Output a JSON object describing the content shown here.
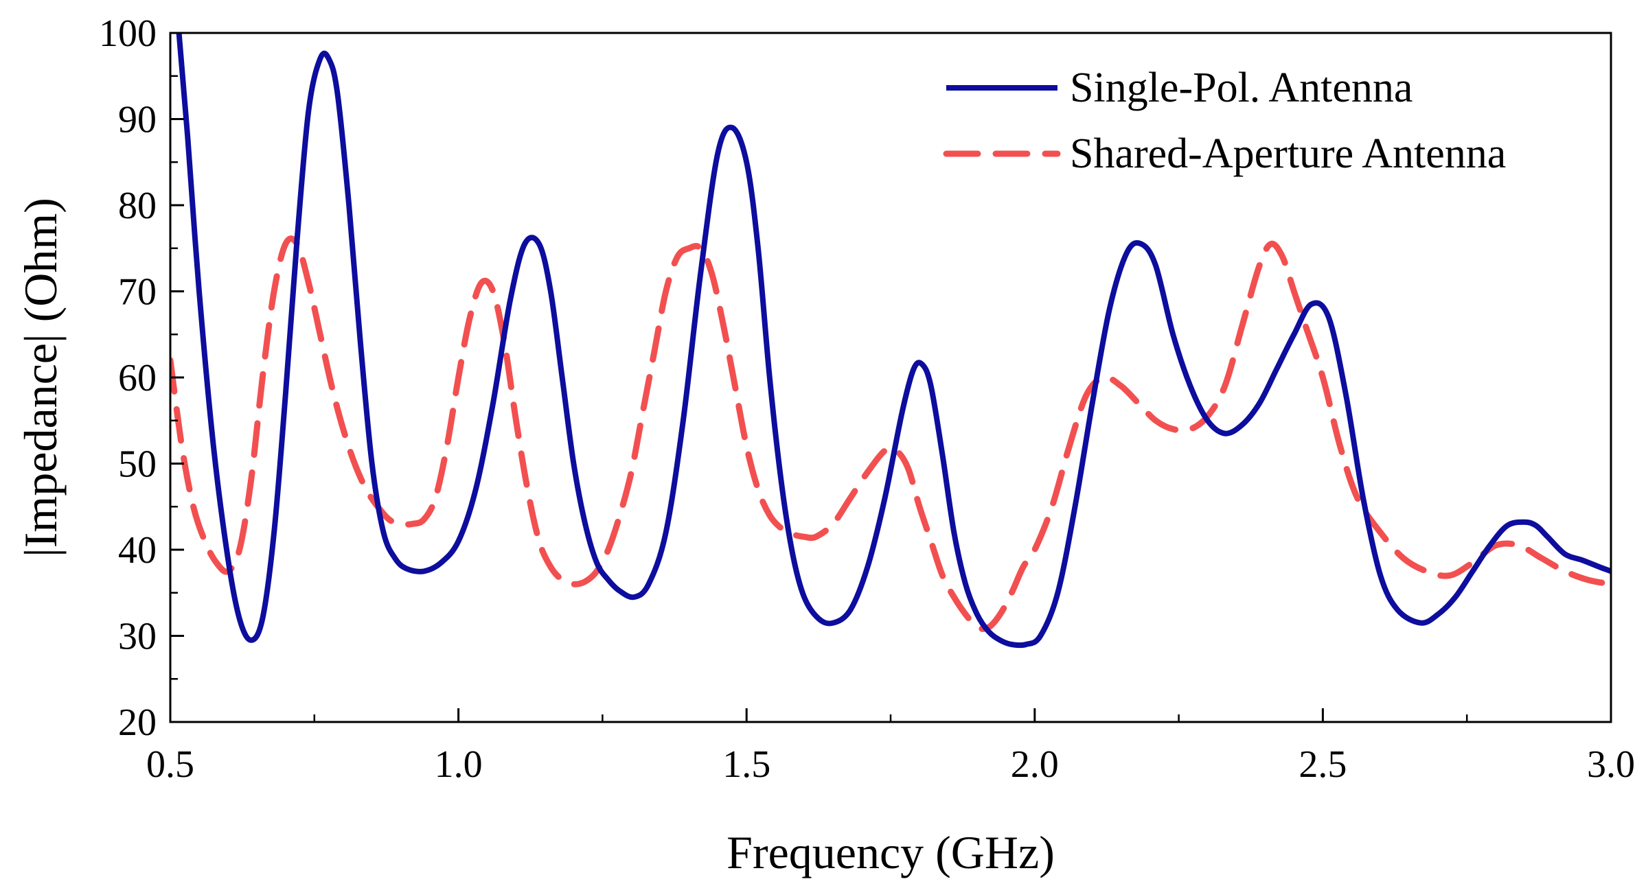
{
  "chart_data": {
    "type": "line",
    "title": "",
    "xlabel": "Frequency (GHz)",
    "ylabel": "|Impedance| (Ohm)",
    "xlim": [
      0.5,
      3.0
    ],
    "ylim": [
      20,
      100
    ],
    "xticks": [
      0.5,
      1.0,
      1.5,
      2.0,
      2.5,
      3.0
    ],
    "xtick_labels": [
      "0.5",
      "1.0",
      "1.5",
      "2.0",
      "2.5",
      "3.0"
    ],
    "yticks": [
      20,
      30,
      40,
      50,
      60,
      70,
      80,
      90,
      100
    ],
    "ytick_labels": [
      "20",
      "30",
      "40",
      "50",
      "60",
      "70",
      "80",
      "90",
      "100"
    ],
    "grid": false,
    "legend_position": "top-right",
    "series": [
      {
        "name": "Single-Pol. Antenna",
        "color": "#0d0d9e",
        "style": "solid",
        "x": [
          0.515,
          0.53,
          0.55,
          0.575,
          0.6,
          0.62,
          0.64,
          0.66,
          0.68,
          0.7,
          0.72,
          0.74,
          0.76,
          0.775,
          0.79,
          0.81,
          0.83,
          0.85,
          0.87,
          0.89,
          0.91,
          0.94,
          0.97,
          1.0,
          1.03,
          1.06,
          1.09,
          1.115,
          1.14,
          1.16,
          1.18,
          1.2,
          1.22,
          1.24,
          1.26,
          1.28,
          1.305,
          1.33,
          1.36,
          1.39,
          1.42,
          1.45,
          1.475,
          1.5,
          1.52,
          1.54,
          1.56,
          1.58,
          1.6,
          1.625,
          1.65,
          1.68,
          1.71,
          1.74,
          1.77,
          1.79,
          1.805,
          1.82,
          1.84,
          1.86,
          1.88,
          1.9,
          1.92,
          1.94,
          1.96,
          1.985,
          2.01,
          2.04,
          2.07,
          2.1,
          2.13,
          2.16,
          2.185,
          2.21,
          2.24,
          2.27,
          2.3,
          2.33,
          2.36,
          2.39,
          2.42,
          2.45,
          2.48,
          2.51,
          2.54,
          2.57,
          2.6,
          2.63,
          2.67,
          2.7,
          2.73,
          2.76,
          2.79,
          2.82,
          2.85,
          2.87,
          2.89,
          2.92,
          2.95,
          2.98,
          3.0
        ],
        "y": [
          100,
          88,
          70,
          52,
          39,
          32,
          29.5,
          32,
          42,
          58,
          76,
          91,
          97,
          97,
          93,
          80,
          64,
          50,
          42,
          39,
          37.8,
          37.5,
          38.5,
          41,
          47,
          57,
          69,
          75.5,
          75.5,
          70,
          60,
          50,
          43,
          38.5,
          36.5,
          35.2,
          34.5,
          36,
          42,
          55,
          72,
          86,
          89,
          85,
          75,
          60,
          48,
          39.5,
          34.5,
          32,
          31.5,
          33,
          38,
          46,
          56,
          61,
          61.5,
          59,
          51,
          42,
          36,
          32.5,
          30.5,
          29.5,
          29,
          29,
          30,
          35,
          45,
          57,
          68,
          74.5,
          75.5,
          73,
          65,
          59,
          55,
          53.5,
          54.5,
          57,
          61,
          65,
          68.5,
          67,
          58,
          46,
          37,
          33,
          31.5,
          32.5,
          34.5,
          37.5,
          40.5,
          42.8,
          43.2,
          42.8,
          41.5,
          39.5,
          38.8,
          38,
          37.5
        ]
      },
      {
        "name": "Shared-Aperture Antenna",
        "color": "#f25050",
        "style": "dashed",
        "x": [
          0.5,
          0.52,
          0.54,
          0.56,
          0.58,
          0.6,
          0.62,
          0.64,
          0.66,
          0.68,
          0.7,
          0.72,
          0.74,
          0.76,
          0.78,
          0.8,
          0.82,
          0.84,
          0.86,
          0.88,
          0.9,
          0.92,
          0.94,
          0.96,
          0.98,
          1.0,
          1.02,
          1.04,
          1.06,
          1.08,
          1.1,
          1.12,
          1.14,
          1.16,
          1.18,
          1.2,
          1.22,
          1.24,
          1.26,
          1.28,
          1.3,
          1.32,
          1.34,
          1.36,
          1.38,
          1.4,
          1.42,
          1.44,
          1.46,
          1.48,
          1.5,
          1.52,
          1.54,
          1.56,
          1.58,
          1.6,
          1.62,
          1.65,
          1.68,
          1.71,
          1.74,
          1.76,
          1.78,
          1.8,
          1.82,
          1.84,
          1.86,
          1.88,
          1.9,
          1.92,
          1.94,
          1.96,
          1.98,
          2.0,
          2.03,
          2.06,
          2.09,
          2.12,
          2.15,
          2.18,
          2.21,
          2.24,
          2.27,
          2.3,
          2.33,
          2.36,
          2.39,
          2.41,
          2.43,
          2.45,
          2.47,
          2.5,
          2.53,
          2.56,
          2.6,
          2.64,
          2.68,
          2.72,
          2.76,
          2.8,
          2.84,
          2.88,
          2.92,
          2.96,
          3.0
        ],
        "y": [
          62,
          52,
          45,
          41,
          38.5,
          37.5,
          40,
          48,
          60,
          70,
          75.5,
          75.5,
          71,
          65,
          59,
          54,
          50,
          47,
          45,
          43.5,
          43,
          43,
          43.5,
          46,
          52,
          60,
          67,
          71,
          70,
          64,
          55,
          47,
          41,
          38,
          36.5,
          36,
          36.3,
          37.5,
          40,
          44,
          49,
          56,
          63,
          70,
          74,
          75,
          75,
          72,
          66,
          59,
          52,
          47,
          44,
          42.5,
          41.8,
          41.5,
          41.5,
          43,
          46,
          49,
          51.5,
          51.5,
          49.5,
          45,
          41,
          37,
          34.5,
          32.5,
          31,
          31,
          32.5,
          35,
          38,
          40,
          45,
          52,
          58,
          60,
          59,
          57,
          55,
          54,
          54,
          55.5,
          59,
          66,
          73,
          75.5,
          74,
          70,
          66,
          60,
          52,
          46,
          42,
          39,
          37.5,
          37,
          38.5,
          40.5,
          40.5,
          39,
          37.5,
          36.5,
          36
        ]
      }
    ]
  }
}
